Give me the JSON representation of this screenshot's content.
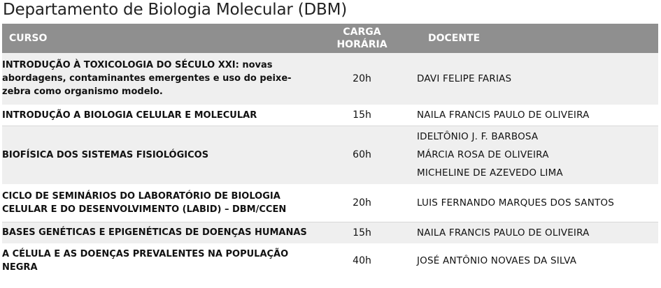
{
  "title": "Departamento de Biologia Molecular (DBM)",
  "headers": {
    "curso": "CURSO",
    "carga_line1": "CARGA",
    "carga_line2": "HORÁRIA",
    "docente": "DOCENTE"
  },
  "rows": [
    {
      "curso": "INTRODUÇÃO À TOXICOLOGIA DO SÉCULO XXI: novas abordagens, contaminantes emergentes e uso do peixe-zebra como organismo modelo.",
      "carga": "20h",
      "docentes": [
        "DAVI FELIPE FARIAS"
      ]
    },
    {
      "curso": "INTRODUÇÃO A BIOLOGIA CELULAR E MOLECULAR",
      "carga": "15h",
      "docentes": [
        "NAILA FRANCIS PAULO DE OLIVEIRA"
      ]
    },
    {
      "curso": "BIOFÍSICA DOS SISTEMAS FISIOLÓGICOS",
      "carga": "60h",
      "docentes": [
        "IDELTÔNIO J. F. BARBOSA",
        "MÁRCIA ROSA DE OLIVEIRA",
        "MICHELINE DE AZEVEDO LIMA"
      ]
    },
    {
      "curso": "CICLO DE SEMINÁRIOS DO LABORATÓRIO DE BIOLOGIA CELULAR E DO DESENVOLVIMENTO (LABID) – DBM/CCEN",
      "carga": "20h",
      "docentes": [
        "LUIS FERNANDO MARQUES DOS SANTOS"
      ]
    },
    {
      "curso": "BASES GENÉTICAS E EPIGENÉTICAS DE DOENÇAS HUMANAS",
      "carga": "15h",
      "docentes": [
        "NAILA FRANCIS PAULO DE OLIVEIRA"
      ]
    },
    {
      "curso": "A CÉLULA E AS DOENÇAS PREVALENTES NA POPULAÇÃO NEGRA",
      "carga": "40h",
      "docentes": [
        "JOSÉ ANTÔNIO NOVAES DA SILVA"
      ]
    }
  ]
}
